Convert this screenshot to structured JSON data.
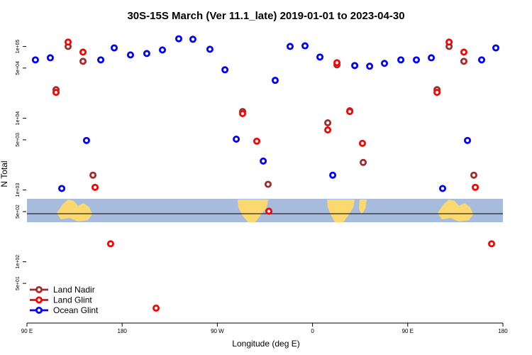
{
  "chart_data": {
    "type": "scatter",
    "title": "30S-15S March (Ver 11.1_late)   2019-01-01 to 2023-04-30",
    "x_label": "Longitude (deg E)",
    "y_label": "N Total",
    "ylog": true,
    "legend": "lower left",
    "xlim": [
      90,
      540
    ],
    "ylim": [
      14,
      200000
    ],
    "xticks": [
      {
        "value": 90,
        "label": "90 E"
      },
      180,
      {
        "value": 270,
        "label": "90 W"
      },
      {
        "value": 360,
        "label": "0"
      },
      {
        "value": 450,
        "label": "90 E"
      },
      {
        "value": 540,
        "label": "180"
      }
    ],
    "yticks": [
      {
        "value": 50,
        "label": "5e+01"
      },
      {
        "value": 100,
        "label": "1e+02"
      },
      {
        "value": 500,
        "label": "5e+02"
      },
      {
        "value": 1000,
        "label": "1e+03"
      },
      {
        "value": 5000,
        "label": "5e+03"
      },
      {
        "value": 10000,
        "label": "1e+04"
      },
      {
        "value": 50000,
        "label": "5e+04"
      },
      {
        "value": 100000,
        "label": "1e+05"
      }
    ],
    "series": [
      {
        "name": "Land Nadir",
        "color": "#a52a2a",
        "x": [
          117.5,
          128.9,
          143.0,
          152.4,
          293.9,
          318.0,
          374.4,
          383.1,
          395.2,
          407.9,
          477.7,
          489.1,
          503.1,
          512.5
        ],
        "values": [
          25000,
          100000,
          62100,
          1610,
          12400,
          1200,
          8630,
          55400,
          12700,
          2420,
          25000,
          100000,
          62100,
          1610
        ]
      },
      {
        "name": "Land Glint",
        "color": "#ff0000",
        "x": [
          117.5,
          128.9,
          143.0,
          154.4,
          169.1,
          212.1,
          293.9,
          307.3,
          318.7,
          374.4,
          383.1,
          395.2,
          407.2,
          477.7,
          489.1,
          503.1,
          513.9,
          529.3
        ],
        "values": [
          22900,
          115000,
          83400,
          1090,
          178,
          22.6,
          11600,
          4790,
          506,
          6870,
          59300,
          12400,
          4470,
          22900,
          115000,
          83400,
          1090,
          178
        ]
      },
      {
        "name": "Ocean Glint",
        "color": "#0000ff",
        "x": [
          98.0,
          112.1,
          122.9,
          146.3,
          159.8,
          172.5,
          187.9,
          203.3,
          218.1,
          233.5,
          246.9,
          263.0,
          277.2,
          287.9,
          313.4,
          324.7,
          338.8,
          352.9,
          367.0,
          379.1,
          399.9,
          414.0,
          428.0,
          443.5,
          458.2,
          472.3,
          483.0,
          506.5,
          519.9,
          533.3
        ],
        "values": [
          65000,
          69500,
          1050,
          4900,
          65000,
          95500,
          76200,
          79700,
          89400,
          128000,
          126000,
          91400,
          47300,
          5110,
          2530,
          33700,
          100000,
          102000,
          71200,
          1610,
          54200,
          53000,
          58100,
          65000,
          65000,
          69500,
          1050,
          4900,
          65000,
          95500
        ]
      }
    ]
  }
}
